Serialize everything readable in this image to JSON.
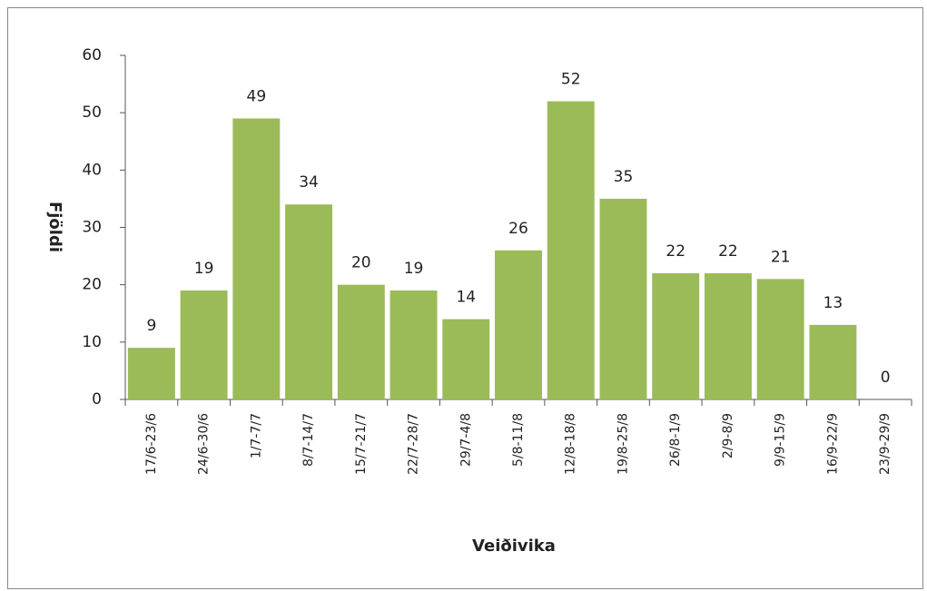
{
  "chart_data": {
    "type": "bar",
    "categories": [
      "17/6-23/6",
      "24/6-30/6",
      "1/7-7/7",
      "8/7-14/7",
      "15/7-21/7",
      "22/7-28/7",
      "29/7-4/8",
      "5/8-11/8",
      "12/8-18/8",
      "19/8-25/8",
      "26/8-1/9",
      "2/9-8/9",
      "9/9-15/9",
      "16/9-22/9",
      "23/9-29/9"
    ],
    "values": [
      9,
      19,
      49,
      34,
      20,
      19,
      14,
      26,
      52,
      35,
      22,
      22,
      21,
      13,
      0
    ],
    "color": "#9bbb59",
    "x_label": "Veiðivika",
    "y_label": "Fjöldi",
    "ylim": [
      0,
      60
    ],
    "yticks": [
      0,
      10,
      20,
      30,
      40,
      50,
      60
    ],
    "grid": false
  }
}
